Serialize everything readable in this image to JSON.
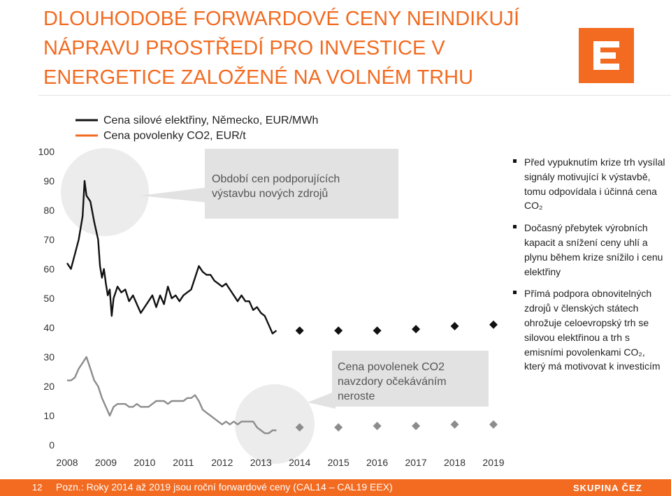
{
  "header": {
    "title_lines": [
      "DLOUHODOBÉ FORWARDOVÉ CENY NEINDIKUJÍ",
      "NÁPRAVU PROSTŘEDÍ PRO INVESTICE V",
      "ENERGETICE ZALOŽENÉ NA VOLNÉM TRHU"
    ]
  },
  "logo": {
    "name": "cez-logo-icon",
    "color": "#f26b21"
  },
  "colors": {
    "accent": "#f26b21",
    "power_series": "#111111",
    "co2_series": "#8c8c8c",
    "callout_bg": "#e2e2e2",
    "bubble": "#ececec"
  },
  "chart_data": {
    "type": "line",
    "ylim": [
      0,
      100
    ],
    "y_ticks": [
      "0",
      "10",
      "20",
      "30",
      "40",
      "50",
      "60",
      "70",
      "80",
      "90",
      "100"
    ],
    "x_ticks": [
      "2008",
      "2009",
      "2010",
      "2011",
      "2012",
      "2013",
      "2014",
      "2015",
      "2016",
      "2017",
      "2018",
      "2019"
    ],
    "xlim": [
      2008,
      2019
    ],
    "grid": false,
    "legend": {
      "placement": "top-left",
      "entries": [
        "Cena silové elektřiny, Německo, EUR/MWh",
        "Cena povolenky CO2, EUR/t"
      ]
    },
    "series": [
      {
        "name": "Cena silové elektřiny, Německo, EUR/MWh",
        "color": "#111111",
        "style": "line",
        "points": [
          [
            2008.0,
            62
          ],
          [
            2008.1,
            60
          ],
          [
            2008.2,
            65
          ],
          [
            2008.3,
            70
          ],
          [
            2008.4,
            78
          ],
          [
            2008.45,
            90
          ],
          [
            2008.5,
            85
          ],
          [
            2008.6,
            83
          ],
          [
            2008.7,
            76
          ],
          [
            2008.8,
            70
          ],
          [
            2008.85,
            61
          ],
          [
            2008.9,
            57
          ],
          [
            2008.95,
            60
          ],
          [
            2009.0,
            55
          ],
          [
            2009.05,
            51
          ],
          [
            2009.1,
            53
          ],
          [
            2009.15,
            44
          ],
          [
            2009.2,
            50
          ],
          [
            2009.3,
            54
          ],
          [
            2009.4,
            52
          ],
          [
            2009.5,
            53
          ],
          [
            2009.6,
            49
          ],
          [
            2009.7,
            51
          ],
          [
            2009.8,
            48
          ],
          [
            2009.9,
            45
          ],
          [
            2010.0,
            47
          ],
          [
            2010.1,
            49
          ],
          [
            2010.2,
            51
          ],
          [
            2010.3,
            47
          ],
          [
            2010.4,
            51
          ],
          [
            2010.5,
            48
          ],
          [
            2010.6,
            54
          ],
          [
            2010.7,
            50
          ],
          [
            2010.8,
            51
          ],
          [
            2010.9,
            49
          ],
          [
            2011.0,
            51
          ],
          [
            2011.1,
            52
          ],
          [
            2011.2,
            53
          ],
          [
            2011.3,
            57
          ],
          [
            2011.4,
            61
          ],
          [
            2011.5,
            59
          ],
          [
            2011.6,
            58
          ],
          [
            2011.7,
            58
          ],
          [
            2011.8,
            56
          ],
          [
            2011.9,
            55
          ],
          [
            2012.0,
            54
          ],
          [
            2012.1,
            55
          ],
          [
            2012.2,
            53
          ],
          [
            2012.3,
            51
          ],
          [
            2012.4,
            49
          ],
          [
            2012.5,
            51
          ],
          [
            2012.6,
            49
          ],
          [
            2012.7,
            49
          ],
          [
            2012.8,
            46
          ],
          [
            2012.9,
            47
          ],
          [
            2013.0,
            45
          ],
          [
            2013.1,
            44
          ],
          [
            2013.2,
            41
          ],
          [
            2013.3,
            38
          ],
          [
            2013.4,
            39
          ]
        ]
      },
      {
        "name": "Cena silové elektřiny, Německo, EUR/MWh (forward CAL)",
        "color": "#111111",
        "style": "markers",
        "marker": "diamond",
        "points": [
          [
            2014,
            39
          ],
          [
            2015,
            39
          ],
          [
            2016,
            39
          ],
          [
            2017,
            39.5
          ],
          [
            2018,
            40.5
          ],
          [
            2019,
            41
          ]
        ]
      },
      {
        "name": "Cena povolenky CO2, EUR/t",
        "color": "#8c8c8c",
        "style": "line",
        "points": [
          [
            2008.0,
            22
          ],
          [
            2008.1,
            22
          ],
          [
            2008.2,
            23
          ],
          [
            2008.3,
            26
          ],
          [
            2008.4,
            28
          ],
          [
            2008.5,
            30
          ],
          [
            2008.6,
            26
          ],
          [
            2008.7,
            22
          ],
          [
            2008.8,
            20
          ],
          [
            2008.9,
            16
          ],
          [
            2009.0,
            13
          ],
          [
            2009.1,
            10
          ],
          [
            2009.2,
            13
          ],
          [
            2009.3,
            14
          ],
          [
            2009.4,
            14
          ],
          [
            2009.5,
            14
          ],
          [
            2009.6,
            13
          ],
          [
            2009.7,
            13
          ],
          [
            2009.8,
            14
          ],
          [
            2009.9,
            13
          ],
          [
            2010.0,
            13
          ],
          [
            2010.1,
            13
          ],
          [
            2010.2,
            14
          ],
          [
            2010.3,
            15
          ],
          [
            2010.4,
            15
          ],
          [
            2010.5,
            15
          ],
          [
            2010.6,
            14
          ],
          [
            2010.7,
            15
          ],
          [
            2010.8,
            15
          ],
          [
            2010.9,
            15
          ],
          [
            2011.0,
            15
          ],
          [
            2011.1,
            16
          ],
          [
            2011.2,
            16
          ],
          [
            2011.3,
            17
          ],
          [
            2011.4,
            15
          ],
          [
            2011.5,
            12
          ],
          [
            2011.6,
            11
          ],
          [
            2011.7,
            10
          ],
          [
            2011.8,
            9
          ],
          [
            2011.9,
            8
          ],
          [
            2012.0,
            7
          ],
          [
            2012.1,
            8
          ],
          [
            2012.2,
            7
          ],
          [
            2012.3,
            8
          ],
          [
            2012.4,
            7
          ],
          [
            2012.5,
            8
          ],
          [
            2012.6,
            8
          ],
          [
            2012.7,
            8
          ],
          [
            2012.8,
            8
          ],
          [
            2012.9,
            6
          ],
          [
            2013.0,
            5
          ],
          [
            2013.1,
            4
          ],
          [
            2013.2,
            4
          ],
          [
            2013.3,
            5
          ],
          [
            2013.4,
            5
          ]
        ]
      },
      {
        "name": "Cena povolenky CO2, EUR/t (forward CAL)",
        "color": "#8c8c8c",
        "style": "markers",
        "marker": "diamond",
        "points": [
          [
            2014,
            6
          ],
          [
            2015,
            6
          ],
          [
            2016,
            6.5
          ],
          [
            2017,
            6.5
          ],
          [
            2018,
            7
          ],
          [
            2019,
            7
          ]
        ]
      }
    ],
    "annotations": [
      {
        "name": "callout-supportive-prices",
        "lines": [
          "Období cen podporujících",
          "výstavbu nových zdrojů"
        ]
      },
      {
        "name": "callout-co2-expectation",
        "lines": [
          "Cena povolenek CO2",
          "navzdory očekáváním",
          "neroste"
        ]
      }
    ]
  },
  "bullets": [
    "Před vypuknutím krize trh vysílal signály motivující k výstavbě, tomu odpovídala i účinná cena CO₂",
    "Dočasný přebytek výrobních kapacit a snížení ceny uhlí a plynu během krize snížilo i cenu elektřiny",
    "Přímá podpora obnovitelných zdrojů v členských státech ohrožuje celoevropský trh se silovou elektřinou a trh s emisními povolenkami CO₂, který má motivovat k investicím"
  ],
  "footer": {
    "page_number": "12",
    "note": "Pozn.: Roky 2014 až 2019 jsou roční forwardové ceny (CAL14 – CAL19 EEX)",
    "brand": "SKUPINA ČEZ"
  }
}
